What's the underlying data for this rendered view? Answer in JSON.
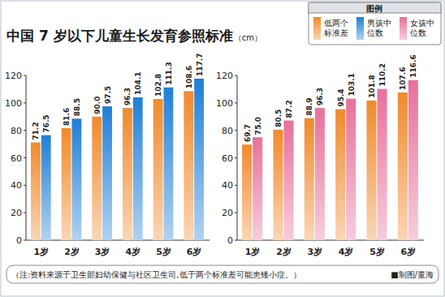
{
  "title": "中国 7 岁以下儿童生长发育参照标准",
  "title_unit": "（cm）",
  "legend_title": "图例",
  "note": "（注:资料来源于卫生部妇幼保健与社区卫生司,低于两个标准差可能患矮小症。）",
  "credit": "■制图/董海",
  "chart_data": [
    {
      "type": "bar",
      "categories": [
        "1岁",
        "2岁",
        "3岁",
        "4岁",
        "5岁",
        "6岁"
      ],
      "series": [
        {
          "name": "低两个标准差",
          "color": "#f08a2c",
          "values": [
            71.2,
            81.6,
            90.0,
            96.3,
            102.8,
            108.6
          ],
          "value_labels": [
            "71.2",
            "81.6",
            "90.0",
            "96.3",
            "102.8",
            "108.6"
          ]
        },
        {
          "name": "男孩中位数",
          "color": "#1f7fd6",
          "values": [
            76.5,
            88.5,
            97.5,
            104.1,
            111.3,
            117.7
          ],
          "value_labels": [
            "76.5",
            "88.5",
            "97.5",
            "104.1",
            "111.3",
            "117.7"
          ]
        }
      ],
      "ylim": [
        0,
        120
      ],
      "yticks": [
        0,
        20,
        40,
        60,
        80,
        100,
        120
      ],
      "grid": false,
      "data_labels": true
    },
    {
      "type": "bar",
      "categories": [
        "1岁",
        "2岁",
        "3岁",
        "4岁",
        "5岁",
        "6岁"
      ],
      "series": [
        {
          "name": "低两个标准差",
          "color": "#f08a2c",
          "values": [
            69.7,
            80.5,
            88.9,
            95.4,
            101.8,
            107.6
          ],
          "value_labels": [
            "69.7",
            "80.5",
            "88.9",
            "95.4",
            "101.8",
            "107.6"
          ]
        },
        {
          "name": "女孩中位数",
          "color": "#e8709c",
          "values": [
            75.0,
            87.2,
            96.3,
            103.1,
            110.2,
            116.6
          ],
          "value_labels": [
            "75.0",
            "87.2",
            "96.3",
            "103.1",
            "110.2",
            "116.6"
          ]
        }
      ],
      "ylim": [
        0,
        120
      ],
      "yticks": [
        0,
        20,
        40,
        60,
        80,
        100,
        120
      ],
      "grid": false,
      "data_labels": true
    }
  ]
}
